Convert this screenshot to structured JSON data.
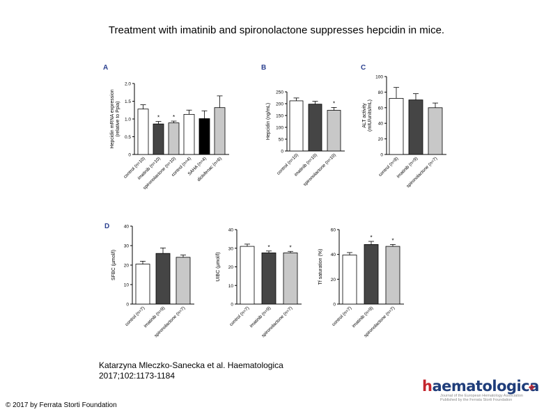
{
  "title": "Treatment with imatinib and spironolactone suppresses hepcidin in mice.",
  "citation": {
    "line1": "Katarzyna Mleczko-Sanecka et al. Haematologica",
    "line2": "2017;102:1173-1184"
  },
  "copyright": "© 2017 by Ferrata Storti Foundation",
  "logo": {
    "word_accent": "h",
    "word_rest": "aematologica",
    "sub1": "Journal of the European Hematology Association",
    "sub2": "Published by the Ferrata Storti Foundation"
  },
  "colors": {
    "white_bar": "#ffffff",
    "dark_bar": "#454545",
    "light_bar": "#c8c8c8",
    "black_bar": "#000000",
    "panel_letter": "#2a3f8f"
  },
  "chart_data": [
    {
      "panel": "A",
      "type": "bar",
      "ylabel_line1": "Hepcidin mRNA expression",
      "ylabel_line2": "(relative to Ppia)",
      "ylim": [
        0,
        2.0
      ],
      "yticks": [
        "0",
        "0.5",
        "1.0",
        "1.5",
        "2.0"
      ],
      "categories": [
        "control (n=10)",
        "imatinib (n=10)",
        "spironolactone (n=10)",
        "control (n=4)",
        "SAHA (n=4)",
        "diclofenac (n=6)"
      ],
      "values": [
        1.28,
        0.86,
        0.89,
        1.13,
        1.01,
        1.32
      ],
      "errors": [
        0.12,
        0.07,
        0.05,
        0.12,
        0.22,
        0.33
      ],
      "fills": [
        "white",
        "dark",
        "light",
        "white",
        "black",
        "light"
      ],
      "significant": [
        "",
        "*",
        "*",
        "",
        "",
        ""
      ]
    },
    {
      "panel": "B",
      "type": "bar",
      "ylabel": "Hepcidin (ng/mL)",
      "ylim": [
        0,
        250
      ],
      "yticks": [
        "0",
        "50",
        "100",
        "150",
        "200",
        "250"
      ],
      "categories": [
        "control (n=10)",
        "imatinib (n=10)",
        "spironolactone (n=10)"
      ],
      "values": [
        212,
        198,
        172
      ],
      "errors": [
        12,
        12,
        12
      ],
      "fills": [
        "white",
        "dark",
        "light"
      ],
      "significant": [
        "",
        "",
        "*"
      ]
    },
    {
      "panel": "C",
      "type": "bar",
      "ylabel_line1": "ALT activity",
      "ylabel_line2": "(mIU/units/mL)",
      "ylim": [
        0,
        100
      ],
      "yticks": [
        "0",
        "20",
        "40",
        "60",
        "80",
        "100"
      ],
      "categories": [
        "control (n=8)",
        "imatinib (n=9)",
        "spironolactone (n=7)"
      ],
      "values": [
        72,
        70,
        60
      ],
      "errors": [
        14,
        8,
        6
      ],
      "fills": [
        "white",
        "dark",
        "light"
      ],
      "significant": [
        "",
        "",
        ""
      ]
    },
    {
      "panel": "D",
      "type": "bar",
      "ylabel": "SFBC (µmol/l)",
      "ylim": [
        0,
        40
      ],
      "yticks": [
        "0",
        "10",
        "20",
        "30",
        "40"
      ],
      "categories": [
        "control (n=7)",
        "imatinib (n=9)",
        "spironolactone (n=7)"
      ],
      "values": [
        20.5,
        26,
        24
      ],
      "errors": [
        1.5,
        2.8,
        1.2
      ],
      "fills": [
        "white",
        "dark",
        "light"
      ],
      "significant": [
        "",
        "",
        ""
      ]
    },
    {
      "panel": "",
      "type": "bar",
      "ylabel": "UIBC (µmol/l)",
      "ylim": [
        0,
        40
      ],
      "yticks": [
        "0",
        "10",
        "20",
        "30",
        "40"
      ],
      "categories": [
        "control (n=7)",
        "imatinib (n=9)",
        "spironolactone (n=7)"
      ],
      "values": [
        31,
        27.5,
        27.5
      ],
      "errors": [
        1.2,
        1.0,
        0.8
      ],
      "fills": [
        "white",
        "dark",
        "light"
      ],
      "significant": [
        "",
        "*",
        "*"
      ]
    },
    {
      "panel": "",
      "type": "bar",
      "ylabel": "Tf saturation (%)",
      "ylim": [
        0,
        60
      ],
      "yticks": [
        "0",
        "20",
        "40",
        "60"
      ],
      "categories": [
        "control (n=7)",
        "imatinib (n=9)",
        "spironolactone (n=7)"
      ],
      "values": [
        39.5,
        48,
        46.5
      ],
      "errors": [
        2,
        2.5,
        1.5
      ],
      "fills": [
        "white",
        "dark",
        "light"
      ],
      "significant": [
        "",
        "*",
        "*"
      ]
    }
  ]
}
